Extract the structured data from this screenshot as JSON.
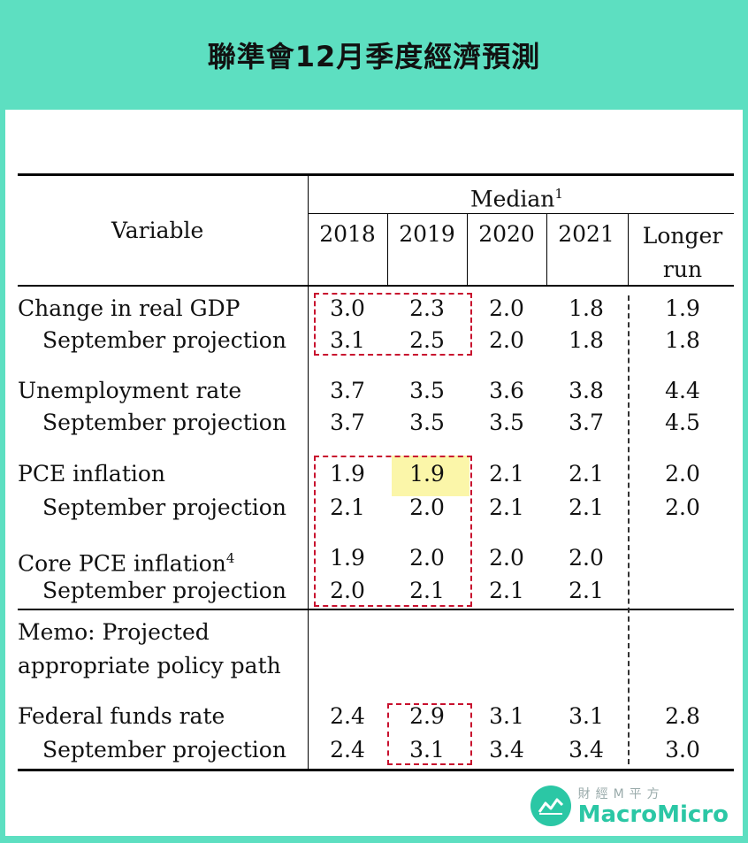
{
  "title": "聯準會12月季度經濟預測",
  "header": {
    "variable": "Variable",
    "median": "Median",
    "median_sup": "1",
    "years": [
      "2018",
      "2019",
      "2020",
      "2021"
    ],
    "longer_run_1": "Longer",
    "longer_run_2": "run"
  },
  "rows": [
    {
      "label": "Change in real GDP",
      "values": [
        "3.0",
        "2.3",
        "2.0",
        "1.8",
        "1.9"
      ]
    },
    {
      "label": "September projection",
      "values": [
        "3.1",
        "2.5",
        "2.0",
        "1.8",
        "1.8"
      ]
    },
    {
      "label": "Unemployment rate",
      "values": [
        "3.7",
        "3.5",
        "3.6",
        "3.8",
        "4.4"
      ]
    },
    {
      "label": "September projection",
      "values": [
        "3.7",
        "3.5",
        "3.5",
        "3.7",
        "4.5"
      ]
    },
    {
      "label": "PCE inflation",
      "values": [
        "1.9",
        "1.9",
        "2.1",
        "2.1",
        "2.0"
      ]
    },
    {
      "label": "September projection",
      "values": [
        "2.1",
        "2.0",
        "2.1",
        "2.1",
        "2.0"
      ]
    },
    {
      "label": "Core PCE inflation",
      "sup": "4",
      "values": [
        "1.9",
        "2.0",
        "2.0",
        "2.0",
        ""
      ]
    },
    {
      "label": "September projection",
      "values": [
        "2.0",
        "2.1",
        "2.1",
        "2.1",
        ""
      ]
    }
  ],
  "memo": {
    "line1": "Memo: Projected",
    "line2": "appropriate policy path"
  },
  "fed_rows": [
    {
      "label": "Federal funds rate",
      "values": [
        "2.4",
        "2.9",
        "3.1",
        "3.1",
        "2.8"
      ]
    },
    {
      "label": "September projection",
      "values": [
        "2.4",
        "3.1",
        "3.4",
        "3.4",
        "3.0"
      ]
    }
  ],
  "logo": {
    "cn": "財經M平方",
    "en": "MacroMicro"
  },
  "colors": {
    "background": "#5ddfc1",
    "highlight_box": "#c8102e",
    "highlight_cell": "#fbf6a9",
    "brand": "#2bc7a5"
  }
}
